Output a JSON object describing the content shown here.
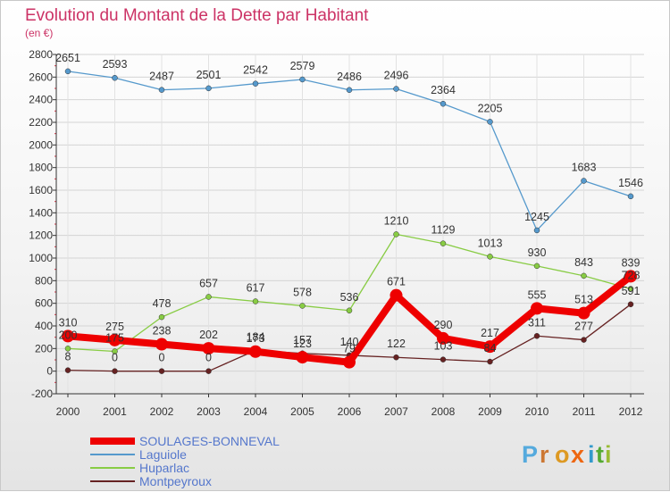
{
  "chart_data": {
    "type": "line",
    "title": "Evolution du Montant de la Dette par Habitant",
    "subtitle": "(en €)",
    "categories": [
      "2000",
      "2001",
      "2002",
      "2003",
      "2004",
      "2005",
      "2006",
      "2007",
      "2008",
      "2009",
      "2010",
      "2011",
      "2012"
    ],
    "ylim": [
      -200,
      2800
    ],
    "yticks": [
      -200,
      0,
      200,
      400,
      600,
      800,
      1000,
      1200,
      1400,
      1600,
      1800,
      2000,
      2200,
      2400,
      2600,
      2800
    ],
    "grid": true,
    "legend_position": "bottom-left",
    "series": [
      {
        "name": "SOULAGES-BONNEVAL",
        "color": "#ee0000",
        "values": [
          310,
          275,
          238,
          202,
          173,
          123,
          79,
          671,
          290,
          217,
          555,
          513,
          839
        ],
        "labels": [
          "310",
          "275",
          "238",
          "202",
          "173",
          "123",
          "79",
          "671",
          "290",
          "217",
          "555",
          "513",
          "839"
        ]
      },
      {
        "name": "Laguiole",
        "color": "#5599cc",
        "values": [
          2651,
          2593,
          2487,
          2501,
          2542,
          2579,
          2486,
          2496,
          2364,
          2205,
          1245,
          1683,
          1546
        ],
        "labels": [
          "2651",
          "2593",
          "2487",
          "2501",
          "2542",
          "2579",
          "2486",
          "2496",
          "2364",
          "2205",
          "1245",
          "1683",
          "1546"
        ]
      },
      {
        "name": "Huparlac",
        "color": "#88cc44",
        "values": [
          200,
          175,
          478,
          657,
          617,
          578,
          536,
          1210,
          1129,
          1013,
          930,
          843,
          728
        ],
        "labels": [
          "200",
          "175",
          "478",
          "657",
          "617",
          "578",
          "536",
          "1210",
          "1129",
          "1013",
          "930",
          "843",
          "728"
        ]
      },
      {
        "name": "Montpeyroux",
        "color": "#662222",
        "values": [
          8,
          0,
          0,
          0,
          184,
          157,
          140,
          122,
          103,
          84,
          311,
          277,
          591
        ],
        "labels": [
          "8",
          "0",
          "0",
          "0",
          "184",
          "157",
          "140",
          "122",
          "103",
          "84",
          "311",
          "277",
          "591"
        ]
      }
    ]
  },
  "brand": {
    "letters": [
      "P",
      "r",
      "o",
      "x",
      "i",
      "t",
      "i"
    ],
    "colors": [
      "#55aadd",
      "#cc7733",
      "#dd9922",
      "#ee6611",
      "#3399cc",
      "#55aa33",
      "#99bb33"
    ]
  }
}
